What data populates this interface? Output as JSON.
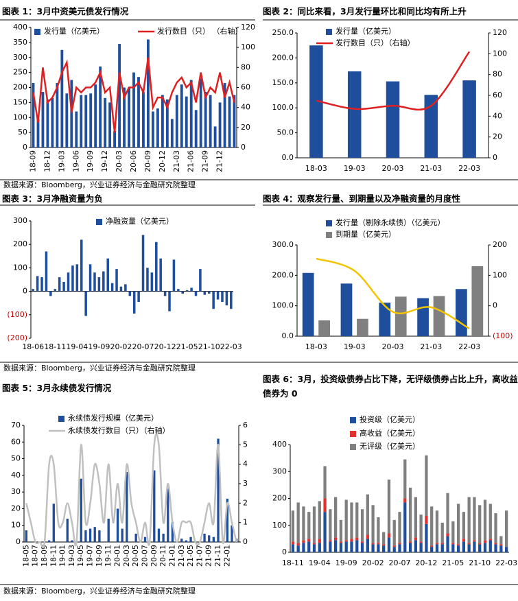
{
  "chart_data": [
    {
      "type": "combo",
      "title": "图表 1：3月中资美元债发行情况",
      "categories": [
        "18-09",
        null,
        null,
        "18-12",
        null,
        null,
        "19-03",
        null,
        null,
        "19-06",
        null,
        null,
        "19-09",
        null,
        null,
        "19-12",
        null,
        null,
        "20-03",
        null,
        null,
        "20-06",
        null,
        null,
        "20-09",
        null,
        null,
        "20-12",
        null,
        null,
        "21-03",
        null,
        null,
        "21-06",
        null,
        null,
        "21-09",
        null,
        null,
        "21-12",
        null,
        null,
        null
      ],
      "series": [
        {
          "name": "发行量（亿美元）",
          "type": "bar",
          "color": "#1f4e9c",
          "values": [
            215,
            95,
            185,
            160,
            165,
            215,
            325,
            180,
            225,
            120,
            175,
            175,
            180,
            210,
            270,
            165,
            150,
            55,
            345,
            200,
            200,
            250,
            235,
            185,
            360,
            120,
            130,
            175,
            160,
            95,
            175,
            210,
            170,
            225,
            125,
            230,
            185,
            175,
            70,
            150,
            215,
            170,
            175
          ]
        },
        {
          "name": "发行数目（只）  （右轴）",
          "type": "line",
          "axis": "y2",
          "color": "#e02020",
          "values": [
            55,
            25,
            80,
            45,
            50,
            60,
            75,
            85,
            35,
            60,
            55,
            60,
            60,
            65,
            75,
            55,
            60,
            15,
            75,
            50,
            60,
            60,
            65,
            55,
            90,
            40,
            50,
            50,
            40,
            55,
            65,
            70,
            60,
            65,
            45,
            75,
            50,
            60,
            55,
            75,
            50,
            65,
            45
          ]
        }
      ],
      "ylim": [
        0,
        400
      ],
      "yticks": [
        0,
        50,
        100,
        150,
        200,
        250,
        300,
        350,
        400
      ],
      "y2lim": [
        0,
        120
      ],
      "y2ticks": [
        0,
        20,
        40,
        60,
        80,
        100,
        120
      ],
      "source": "数据来源：Bloomberg，兴业证券经济与金融研究院整理"
    },
    {
      "type": "combo",
      "title": "图表 2：同比来看，3月发行量环比和同比均有所上升",
      "categories": [
        "18-03",
        "19-03",
        "20-03",
        "21-03",
        "22-03"
      ],
      "series": [
        {
          "name": "发行量（亿美元）",
          "type": "bar",
          "color": "#1f4e9c",
          "values": [
            225,
            173,
            153,
            126,
            155
          ]
        },
        {
          "name": "发行数目（只）（右轴）",
          "type": "line",
          "axis": "y2",
          "color": "#e02020",
          "smooth": true,
          "values": [
            55,
            47,
            50,
            50,
            102
          ]
        }
      ],
      "ylim": [
        0,
        250
      ],
      "yticks": [
        {
          "value": 0,
          "label": "0.0"
        },
        {
          "value": 50,
          "label": "50.0"
        },
        {
          "value": 100,
          "label": "100.0"
        },
        {
          "value": 150,
          "label": "150.0"
        },
        {
          "value": 200,
          "label": "200.0"
        },
        {
          "value": 250,
          "label": "250.0"
        }
      ],
      "y2lim": [
        0,
        120
      ],
      "y2ticks": [
        0,
        20,
        40,
        60,
        80,
        100,
        120
      ]
    },
    {
      "type": "combo",
      "title": "图表 3：3月净融资量为负",
      "categories": [
        "18-06",
        null,
        null,
        null,
        null,
        "18-11",
        null,
        null,
        null,
        null,
        "19-04",
        null,
        null,
        null,
        null,
        "19-09",
        null,
        null,
        null,
        null,
        "20-02",
        null,
        null,
        null,
        null,
        "20-07",
        null,
        null,
        null,
        null,
        "20-12",
        null,
        null,
        null,
        null,
        "21-05",
        null,
        null,
        null,
        null,
        "21-10",
        null,
        null,
        null,
        null,
        "22-03"
      ],
      "series": [
        {
          "name": "净融资量（亿美元）",
          "type": "bar",
          "color": "#1f4e9c",
          "values": [
            10,
            65,
            60,
            170,
            -20,
            10,
            60,
            40,
            80,
            110,
            115,
            220,
            -105,
            115,
            80,
            60,
            85,
            140,
            35,
            95,
            20,
            30,
            -20,
            -95,
            -45,
            240,
            100,
            80,
            210,
            140,
            -20,
            -85,
            135,
            10,
            -10,
            5,
            15,
            -20,
            95,
            -15,
            -10,
            -75,
            -35,
            -45,
            -60,
            -75
          ]
        }
      ],
      "ylim": [
        -200,
        300
      ],
      "yticks": [
        {
          "value": -200,
          "label": "(200)"
        },
        {
          "value": -100,
          "label": "(100)"
        },
        0,
        100,
        200,
        300
      ],
      "negative_tick_color": "#c00000",
      "source": "数据来源：Bloomberg，兴业证券经济与金融研究院整理"
    },
    {
      "type": "combo",
      "title": "图表 4：观察发行量、到期量以及净融资量的月度性",
      "categories": [
        "18-03",
        "19-03",
        "20-03",
        "21-03",
        "22-03"
      ],
      "series": [
        {
          "name": "发行量（剔除永续债）（亿美元）",
          "type": "bar",
          "color": "#1f4e9c",
          "values": [
            208,
            173,
            110,
            125,
            155
          ]
        },
        {
          "name": "到期量（亿美元）",
          "type": "bar",
          "color": "#808080",
          "values": [
            52,
            57,
            130,
            132,
            230
          ]
        },
        {
          "type": "line",
          "axis": "y2",
          "color": "#f2c400",
          "smooth": true,
          "values": [
            155,
            115,
            -20,
            -5,
            -75
          ]
        }
      ],
      "ylim": [
        0,
        300
      ],
      "yticks": [
        {
          "value": 0,
          "label": "0.0"
        },
        {
          "value": 100,
          "label": "100.0"
        },
        {
          "value": 200,
          "label": "200.0"
        },
        {
          "value": 300,
          "label": "300.0"
        }
      ],
      "y2lim": [
        -100,
        200
      ],
      "y2ticks": [
        {
          "value": -100,
          "label": "(100)"
        },
        0,
        100,
        200
      ],
      "negative_tick_color": "#c00000"
    },
    {
      "type": "combo",
      "title": "图表 5：3月永续债发行情况",
      "categories": [
        "18-05",
        null,
        "18-07",
        null,
        "18-09",
        null,
        "18-11",
        null,
        "19-01",
        null,
        "19-03",
        null,
        "19-05",
        null,
        "19-07",
        null,
        "19-09",
        null,
        "19-11",
        null,
        "20-01",
        null,
        "20-03",
        null,
        "20-05",
        null,
        "20-07",
        null,
        "20-09",
        null,
        "20-11",
        null,
        "21-01",
        null,
        "21-03",
        null,
        "21-05",
        null,
        "21-07",
        null,
        "21-09",
        null,
        "21-11",
        null,
        "22-01",
        null,
        null
      ],
      "series": [
        {
          "name": "永续债发行规模（亿美元）",
          "type": "bar",
          "color": "#1f4e9c",
          "values": [
            7,
            0,
            0,
            0,
            0,
            1,
            23,
            0,
            0,
            14,
            1,
            0,
            38,
            7,
            8,
            9,
            7,
            0,
            14,
            0,
            20,
            8,
            42,
            0,
            5,
            0,
            3,
            0,
            43,
            8,
            5,
            32,
            12,
            0,
            2,
            1,
            3,
            0,
            0,
            5,
            4,
            3,
            62,
            0,
            26,
            10,
            2
          ]
        },
        {
          "name": "永续债发行数目（只）（右轴）",
          "type": "line",
          "axis": "y2",
          "color": "#c0c0c0",
          "smooth": true,
          "values": [
            2,
            1,
            0,
            0,
            0,
            4,
            4,
            1,
            1,
            2,
            1,
            0,
            5,
            1,
            2,
            4,
            3,
            1,
            4,
            1,
            3,
            1,
            4,
            2,
            1,
            0,
            1,
            0,
            5,
            5,
            1,
            3,
            1,
            0,
            1,
            1,
            1,
            0,
            0,
            1,
            2,
            1,
            5,
            0,
            2,
            1,
            0
          ]
        }
      ],
      "ylim": [
        0,
        70
      ],
      "yticks": [
        0,
        10,
        20,
        30,
        40,
        50,
        60,
        70
      ],
      "y2lim": [
        0,
        6
      ],
      "y2ticks": [
        0,
        1,
        2,
        3,
        4,
        5,
        6
      ],
      "source": "数据来源：Bloomberg，兴业证券经济与金融研究院整理"
    },
    {
      "type": "stacked_bar",
      "title": "图表 6：3月，投资级债券占比下降，无评级债券占比上升，高收益债券为 0",
      "categories": [
        "18-11",
        null,
        null,
        null,
        null,
        "19-04",
        null,
        null,
        null,
        null,
        "19-09",
        null,
        null,
        null,
        null,
        "20-02",
        null,
        null,
        null,
        null,
        "20-07",
        null,
        null,
        null,
        null,
        "20-12",
        null,
        null,
        null,
        null,
        "21-05",
        null,
        null,
        null,
        null,
        "21-10",
        null,
        null,
        null,
        null,
        "22-03"
      ],
      "series": [
        {
          "name": "投资级（亿美元）",
          "type": "bar",
          "color": "#1f4e9c",
          "values": [
            30,
            25,
            35,
            40,
            30,
            35,
            150,
            40,
            45,
            35,
            40,
            40,
            45,
            35,
            50,
            30,
            30,
            25,
            55,
            20,
            30,
            185,
            35,
            45,
            35,
            105,
            20,
            30,
            30,
            60,
            30,
            25,
            40,
            30,
            40,
            30,
            35,
            45,
            30,
            25,
            20
          ]
        },
        {
          "name": "高收益（亿美元）",
          "type": "bar",
          "color": "#e03030",
          "values": [
            10,
            10,
            10,
            10,
            5,
            15,
            50,
            5,
            10,
            5,
            5,
            10,
            10,
            5,
            15,
            5,
            5,
            5,
            15,
            5,
            5,
            15,
            5,
            10,
            5,
            30,
            5,
            5,
            5,
            10,
            5,
            5,
            10,
            5,
            5,
            5,
            10,
            5,
            5,
            5,
            0
          ]
        },
        {
          "name": "无评级（亿美元）",
          "type": "bar",
          "color": "#7f7f7f",
          "values": [
            115,
            150,
            125,
            100,
            135,
            140,
            120,
            115,
            150,
            80,
            150,
            135,
            130,
            120,
            150,
            140,
            95,
            45,
            200,
            95,
            115,
            145,
            200,
            150,
            100,
            225,
            145,
            120,
            75,
            150,
            80,
            150,
            100,
            170,
            160,
            140,
            150,
            130,
            110,
            30,
            135
          ]
        }
      ],
      "ylim": [
        0,
        400
      ],
      "yticks": [
        0,
        100,
        200,
        300,
        400
      ]
    }
  ]
}
